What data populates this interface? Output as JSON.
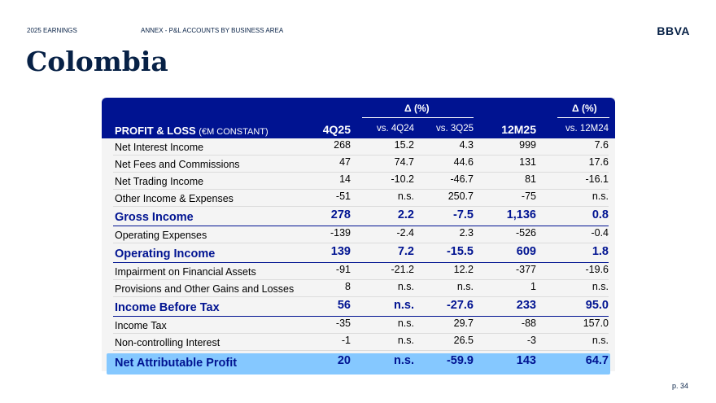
{
  "header": {
    "report": "2025 EARNINGS",
    "section": "ANNEX - P&L ACCOUNTS BY BUSINESS AREA",
    "logo": "BBVA"
  },
  "title": "Colombia",
  "table": {
    "heading_main": "PROFIT & LOSS",
    "heading_unit": "(€M CONSTANT)",
    "delta_label_1": "Δ (%)",
    "delta_label_2": "Δ (%)",
    "columns": [
      "4Q25",
      "vs. 4Q24",
      "vs. 3Q25",
      "12M25",
      "vs. 12M24"
    ],
    "rows": [
      {
        "label": "Net Interest Income",
        "values": [
          "268",
          "15.2",
          "4.3",
          "999",
          "7.6"
        ],
        "style": "normal"
      },
      {
        "label": "Net Fees and Commissions",
        "values": [
          "47",
          "74.7",
          "44.6",
          "131",
          "17.6"
        ],
        "style": "normal"
      },
      {
        "label": "Net Trading Income",
        "values": [
          "14",
          "-10.2",
          "-46.7",
          "81",
          "-16.1"
        ],
        "style": "normal"
      },
      {
        "label": "Other Income & Expenses",
        "values": [
          "-51",
          "n.s.",
          "250.7",
          "-75",
          "n.s."
        ],
        "style": "normal"
      },
      {
        "label": "Gross Income",
        "values": [
          "278",
          "2.2",
          "-7.5",
          "1,136",
          "0.8"
        ],
        "style": "major"
      },
      {
        "label": "Operating Expenses",
        "values": [
          "-139",
          "-2.4",
          "2.3",
          "-526",
          "-0.4"
        ],
        "style": "normal"
      },
      {
        "label": "Operating Income",
        "values": [
          "139",
          "7.2",
          "-15.5",
          "609",
          "1.8"
        ],
        "style": "major"
      },
      {
        "label": "Impairment on Financial Assets",
        "values": [
          "-91",
          "-21.2",
          "12.2",
          "-377",
          "-19.6"
        ],
        "style": "normal"
      },
      {
        "label": "Provisions and Other Gains and Losses",
        "values": [
          "8",
          "n.s.",
          "n.s.",
          "1",
          "n.s."
        ],
        "style": "normal"
      },
      {
        "label": "Income Before Tax",
        "values": [
          "56",
          "n.s.",
          "-27.6",
          "233",
          "95.0"
        ],
        "style": "major"
      },
      {
        "label": "Income Tax",
        "values": [
          "-35",
          "n.s.",
          "29.7",
          "-88",
          "157.0"
        ],
        "style": "normal"
      },
      {
        "label": "Non-controlling Interest",
        "values": [
          "-1",
          "n.s.",
          "26.5",
          "-3",
          "n.s."
        ],
        "style": "normal"
      },
      {
        "label": "Net Attributable Profit",
        "values": [
          "20",
          "n.s.",
          "-59.9",
          "143",
          "64.7"
        ],
        "style": "final"
      }
    ]
  },
  "page_number": "p. 34"
}
